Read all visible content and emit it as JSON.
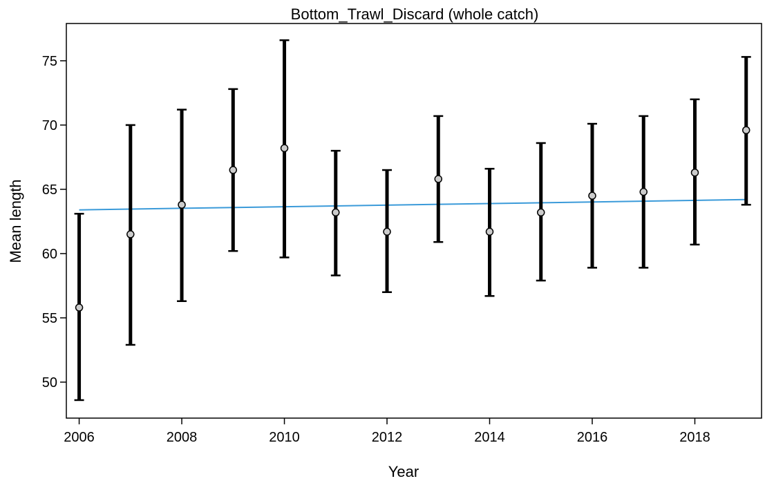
{
  "chart_data": {
    "type": "scatter",
    "title": "Bottom_Trawl_Discard (whole catch)",
    "xlabel": "Year",
    "ylabel": "Mean length",
    "xlim": [
      2005.75,
      2019.3
    ],
    "ylim": [
      47.2,
      77.9
    ],
    "xticks": [
      "2006",
      "2008",
      "2010",
      "2012",
      "2014",
      "2016",
      "2018"
    ],
    "yticks": [
      "50",
      "55",
      "60",
      "65",
      "70",
      "75"
    ],
    "grid": false,
    "legend": "none",
    "colors": {
      "errorbar": "#000000",
      "point_fill": "#cccccc",
      "point_stroke": "#000000",
      "fit_line": "#3a9ad9"
    },
    "points": [
      {
        "x": 2006,
        "y": 55.8,
        "lo": 48.6,
        "hi": 63.1
      },
      {
        "x": 2007,
        "y": 61.5,
        "lo": 52.9,
        "hi": 70.0
      },
      {
        "x": 2008,
        "y": 63.8,
        "lo": 56.3,
        "hi": 71.2
      },
      {
        "x": 2009,
        "y": 66.5,
        "lo": 60.2,
        "hi": 72.8
      },
      {
        "x": 2010,
        "y": 68.2,
        "lo": 59.7,
        "hi": 76.6
      },
      {
        "x": 2011,
        "y": 63.2,
        "lo": 58.3,
        "hi": 68.0
      },
      {
        "x": 2012,
        "y": 61.7,
        "lo": 57.0,
        "hi": 66.5
      },
      {
        "x": 2013,
        "y": 65.8,
        "lo": 60.9,
        "hi": 70.7
      },
      {
        "x": 2014,
        "y": 61.7,
        "lo": 56.7,
        "hi": 66.6
      },
      {
        "x": 2015,
        "y": 63.2,
        "lo": 57.9,
        "hi": 68.6
      },
      {
        "x": 2016,
        "y": 64.5,
        "lo": 58.9,
        "hi": 70.1
      },
      {
        "x": 2017,
        "y": 64.8,
        "lo": 58.9,
        "hi": 70.7
      },
      {
        "x": 2018,
        "y": 66.3,
        "lo": 60.7,
        "hi": 72.0
      },
      {
        "x": 2019,
        "y": 69.6,
        "lo": 63.8,
        "hi": 75.3
      }
    ],
    "fit_line": [
      {
        "x": 2006,
        "y": 63.4
      },
      {
        "x": 2019,
        "y": 64.2
      }
    ]
  }
}
